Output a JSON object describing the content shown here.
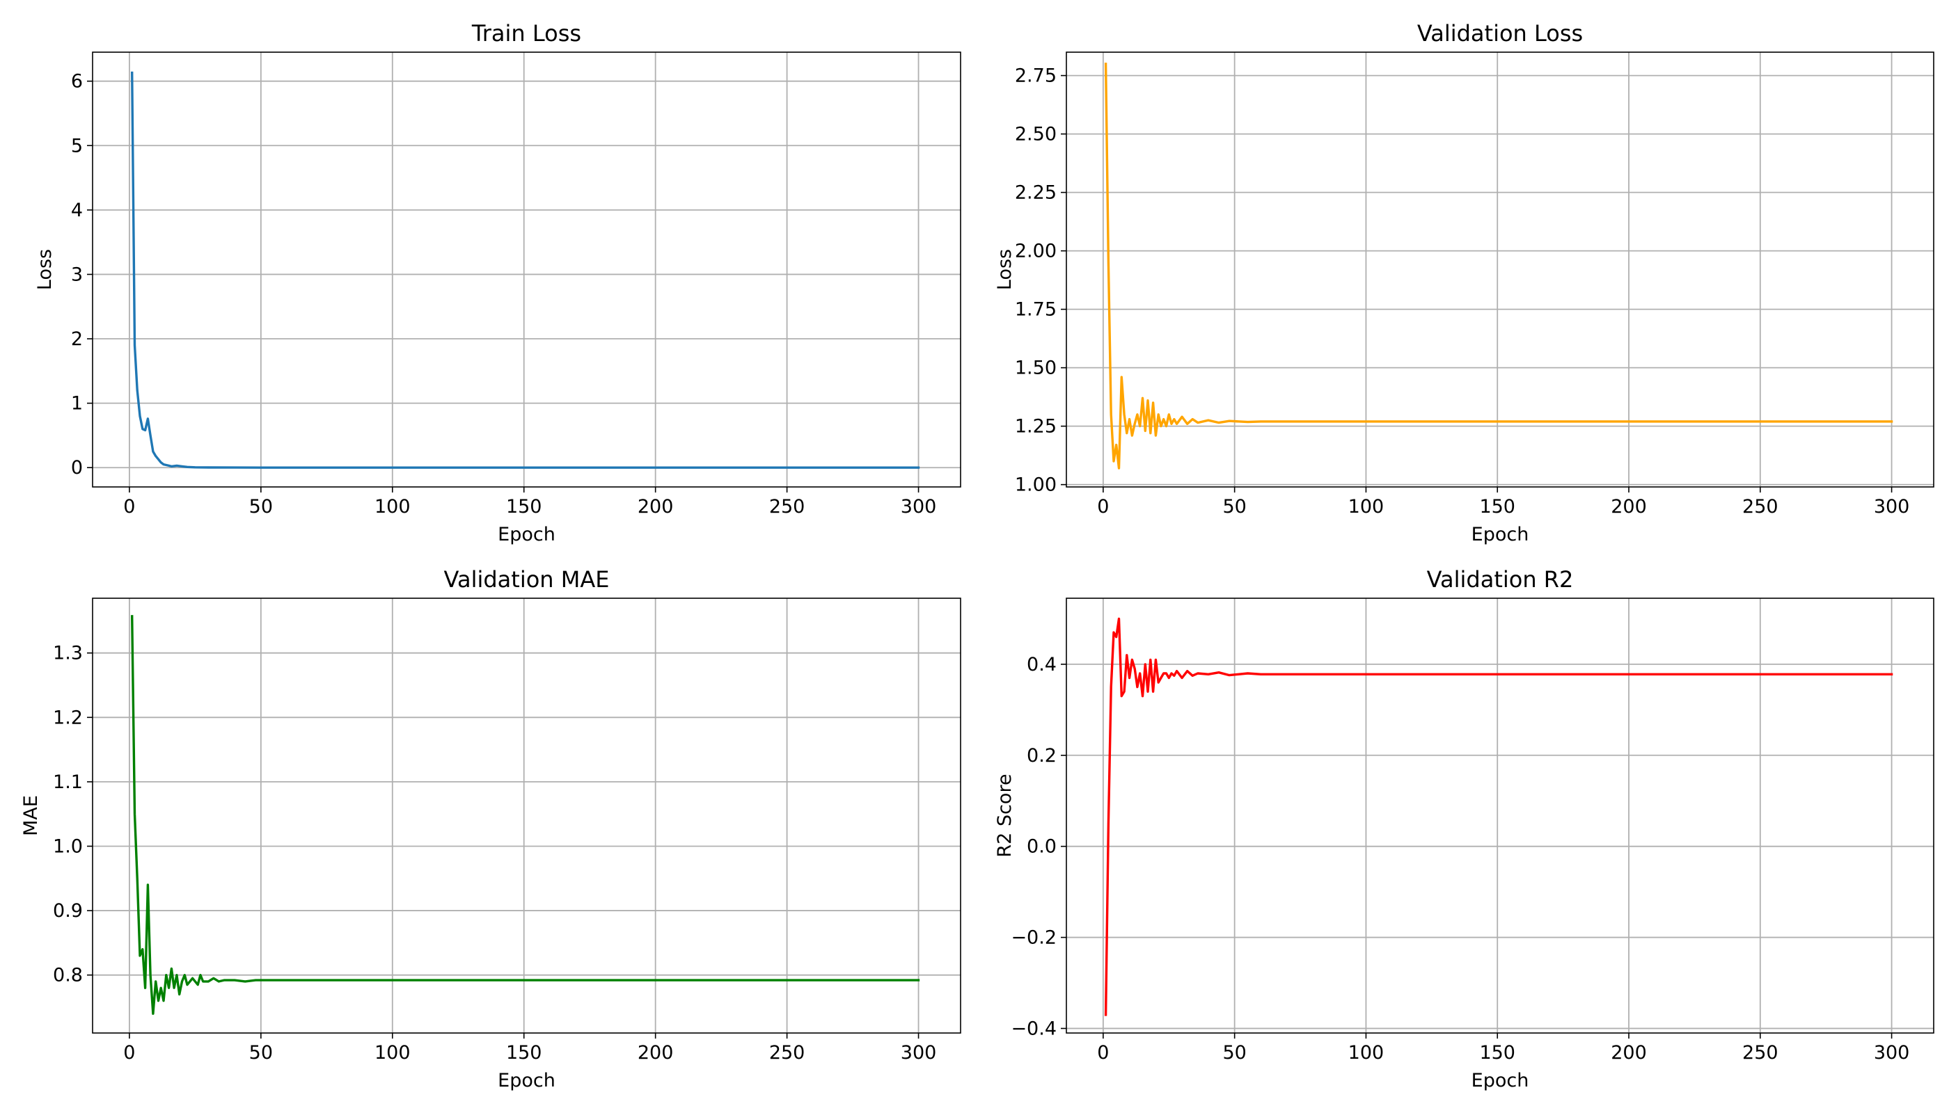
{
  "chart_data": [
    {
      "type": "line",
      "title": "Train Loss",
      "xlabel": "Epoch",
      "ylabel": "Loss",
      "grid": true,
      "color": "#1f77b4",
      "xlim": [
        -14,
        316
      ],
      "ylim": [
        -0.3,
        6.45
      ],
      "xticks": [
        0,
        50,
        100,
        150,
        200,
        250,
        300
      ],
      "yticks": [
        0,
        1,
        2,
        3,
        4,
        5,
        6
      ],
      "yticklabels": [
        "0",
        "1",
        "2",
        "3",
        "4",
        "5",
        "6"
      ],
      "x": [
        1,
        2,
        3,
        4,
        5,
        6,
        7,
        8,
        9,
        10,
        11,
        12,
        13,
        14,
        15,
        16,
        18,
        20,
        22,
        25,
        30,
        40,
        50,
        60,
        100,
        150,
        200,
        250,
        300
      ],
      "y": [
        6.13,
        1.9,
        1.2,
        0.8,
        0.6,
        0.58,
        0.76,
        0.5,
        0.25,
        0.18,
        0.13,
        0.08,
        0.05,
        0.04,
        0.03,
        0.02,
        0.03,
        0.02,
        0.01,
        0.005,
        0.002,
        0.001,
        0.0,
        0.0,
        0.0,
        0.0,
        0.0,
        0.0,
        0.0
      ]
    },
    {
      "type": "line",
      "title": "Validation Loss",
      "xlabel": "Epoch",
      "ylabel": "Loss",
      "grid": true,
      "color": "#ffa500",
      "xlim": [
        -14,
        316
      ],
      "ylim": [
        0.99,
        2.85
      ],
      "xticks": [
        0,
        50,
        100,
        150,
        200,
        250,
        300
      ],
      "yticks": [
        1.0,
        1.25,
        1.5,
        1.75,
        2.0,
        2.25,
        2.5,
        2.75
      ],
      "yticklabels": [
        "1.00",
        "1.25",
        "1.50",
        "1.75",
        "2.00",
        "2.25",
        "2.50",
        "2.75"
      ],
      "x": [
        1,
        2,
        3,
        4,
        5,
        6,
        7,
        8,
        9,
        10,
        11,
        12,
        13,
        14,
        15,
        16,
        17,
        18,
        19,
        20,
        21,
        22,
        23,
        24,
        25,
        26,
        27,
        28,
        30,
        32,
        34,
        36,
        40,
        44,
        48,
        55,
        60,
        100,
        150,
        200,
        250,
        300
      ],
      "y": [
        2.8,
        1.95,
        1.3,
        1.1,
        1.17,
        1.07,
        1.46,
        1.3,
        1.22,
        1.28,
        1.21,
        1.26,
        1.3,
        1.25,
        1.37,
        1.23,
        1.36,
        1.22,
        1.35,
        1.21,
        1.3,
        1.25,
        1.28,
        1.25,
        1.3,
        1.26,
        1.28,
        1.26,
        1.29,
        1.26,
        1.28,
        1.265,
        1.275,
        1.265,
        1.272,
        1.268,
        1.27,
        1.27,
        1.27,
        1.27,
        1.27,
        1.27
      ]
    },
    {
      "type": "line",
      "title": "Validation MAE",
      "xlabel": "Epoch",
      "ylabel": "MAE",
      "grid": true,
      "color": "#008000",
      "xlim": [
        -14,
        316
      ],
      "ylim": [
        0.71,
        1.385
      ],
      "xticks": [
        0,
        50,
        100,
        150,
        200,
        250,
        300
      ],
      "yticks": [
        0.8,
        0.9,
        1.0,
        1.1,
        1.2,
        1.3
      ],
      "yticklabels": [
        "0.8",
        "0.9",
        "1.0",
        "1.1",
        "1.2",
        "1.3"
      ],
      "x": [
        1,
        2,
        3,
        4,
        5,
        6,
        7,
        8,
        9,
        10,
        11,
        12,
        13,
        14,
        15,
        16,
        17,
        18,
        19,
        20,
        21,
        22,
        23,
        24,
        25,
        26,
        27,
        28,
        30,
        32,
        34,
        36,
        40,
        44,
        48,
        55,
        60,
        100,
        150,
        200,
        250,
        300
      ],
      "y": [
        1.357,
        1.05,
        0.95,
        0.83,
        0.84,
        0.78,
        0.94,
        0.8,
        0.74,
        0.79,
        0.76,
        0.78,
        0.76,
        0.8,
        0.78,
        0.81,
        0.78,
        0.8,
        0.77,
        0.79,
        0.8,
        0.785,
        0.79,
        0.795,
        0.79,
        0.785,
        0.8,
        0.79,
        0.79,
        0.795,
        0.79,
        0.792,
        0.792,
        0.79,
        0.792,
        0.792,
        0.792,
        0.792,
        0.792,
        0.792,
        0.792,
        0.792
      ]
    },
    {
      "type": "line",
      "title": "Validation R2",
      "xlabel": "Epoch",
      "ylabel": "R2 Score",
      "grid": true,
      "color": "#ff0000",
      "xlim": [
        -14,
        316
      ],
      "ylim": [
        -0.41,
        0.545
      ],
      "xticks": [
        0,
        50,
        100,
        150,
        200,
        250,
        300
      ],
      "yticks": [
        -0.4,
        -0.2,
        0.0,
        0.2,
        0.4
      ],
      "yticklabels": [
        "−0.4",
        "−0.2",
        "0.0",
        "0.2",
        "0.4"
      ],
      "x": [
        1,
        2,
        3,
        4,
        5,
        6,
        7,
        8,
        9,
        10,
        11,
        12,
        13,
        14,
        15,
        16,
        17,
        18,
        19,
        20,
        21,
        22,
        23,
        24,
        25,
        26,
        27,
        28,
        30,
        32,
        34,
        36,
        40,
        44,
        48,
        55,
        60,
        100,
        150,
        200,
        250,
        300
      ],
      "y": [
        -0.37,
        0.05,
        0.35,
        0.47,
        0.46,
        0.5,
        0.33,
        0.34,
        0.42,
        0.37,
        0.41,
        0.39,
        0.35,
        0.38,
        0.33,
        0.4,
        0.34,
        0.41,
        0.34,
        0.41,
        0.36,
        0.37,
        0.38,
        0.38,
        0.37,
        0.38,
        0.375,
        0.385,
        0.37,
        0.385,
        0.375,
        0.38,
        0.378,
        0.382,
        0.376,
        0.38,
        0.378,
        0.378,
        0.378,
        0.378,
        0.378,
        0.378
      ]
    }
  ]
}
